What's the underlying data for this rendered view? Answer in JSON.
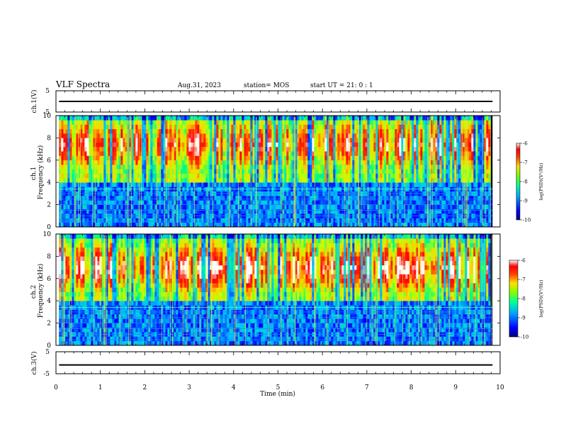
{
  "header": {
    "title": "VLF Spectra",
    "date": "Aug.31, 2023",
    "station": "station= MOS",
    "start_ut": "start UT = 21: 0 : 1"
  },
  "chart_data": [
    {
      "type": "line",
      "panel": "ch1-voltage",
      "ylabel": "ch.1(V)",
      "ylim": [
        -5,
        5
      ],
      "yticks": [
        "5",
        "-5"
      ],
      "xlim": [
        0,
        10
      ],
      "series": [
        {
          "x": [
            0.07,
            9.83
          ],
          "y": [
            0,
            0
          ]
        }
      ]
    },
    {
      "type": "heatmap",
      "panel": "ch1-spectrogram",
      "ylabel": "ch.1 Frequency (kHz)",
      "ylim": [
        0,
        10
      ],
      "yticks": [
        "0",
        "2",
        "4",
        "6",
        "8",
        "10"
      ],
      "xlim": [
        0,
        10
      ],
      "colorbar": {
        "label": "log(PSD)(V²/Hz)",
        "range": [
          -10,
          -6
        ],
        "ticks": [
          "-6",
          "-7",
          "-8",
          "-9",
          "-10"
        ]
      },
      "data_extent_min": [
        0.07,
        9.83
      ],
      "strong_band_khz": [
        5,
        9.5
      ],
      "narrowband_lines_khz": [
        0.5,
        1.0,
        1.5,
        2.0,
        2.5,
        3.0,
        3.4
      ]
    },
    {
      "type": "heatmap",
      "panel": "ch2-spectrogram",
      "ylabel": "ch.2 Frequency (kHz)",
      "ylim": [
        0,
        10
      ],
      "yticks": [
        "0",
        "2",
        "4",
        "6",
        "8",
        "10"
      ],
      "xlim": [
        0,
        10
      ],
      "colorbar": {
        "label": "log(PSD)(V²/Hz)",
        "range": [
          -10,
          -6
        ],
        "ticks": [
          "-6",
          "-7",
          "-8",
          "-9",
          "-10"
        ]
      },
      "data_extent_min": [
        0.07,
        9.83
      ],
      "strong_band_khz": [
        4.5,
        9
      ],
      "narrowband_lines_khz": [
        0.5,
        1.0,
        1.5,
        2.0,
        2.5,
        3.0,
        3.4
      ]
    },
    {
      "type": "line",
      "panel": "ch3-voltage",
      "ylabel": "ch.3(V)",
      "ylim": [
        -5,
        5
      ],
      "yticks": [
        "5",
        "-5"
      ],
      "xlim": [
        0,
        10
      ],
      "series": [
        {
          "x": [
            0.07,
            9.83
          ],
          "y": [
            -1,
            -1
          ]
        }
      ]
    }
  ],
  "x_axis": {
    "label": "Time (min)",
    "ticks": [
      "0",
      "1",
      "2",
      "3",
      "4",
      "5",
      "6",
      "7",
      "8",
      "9",
      "10"
    ]
  },
  "colors": {
    "colormap": [
      "#00008f",
      "#0000ff",
      "#00bfff",
      "#00ff80",
      "#c0ff00",
      "#ffd000",
      "#ff3000",
      "#ff0000",
      "#ffffff"
    ],
    "background": "#000000"
  }
}
